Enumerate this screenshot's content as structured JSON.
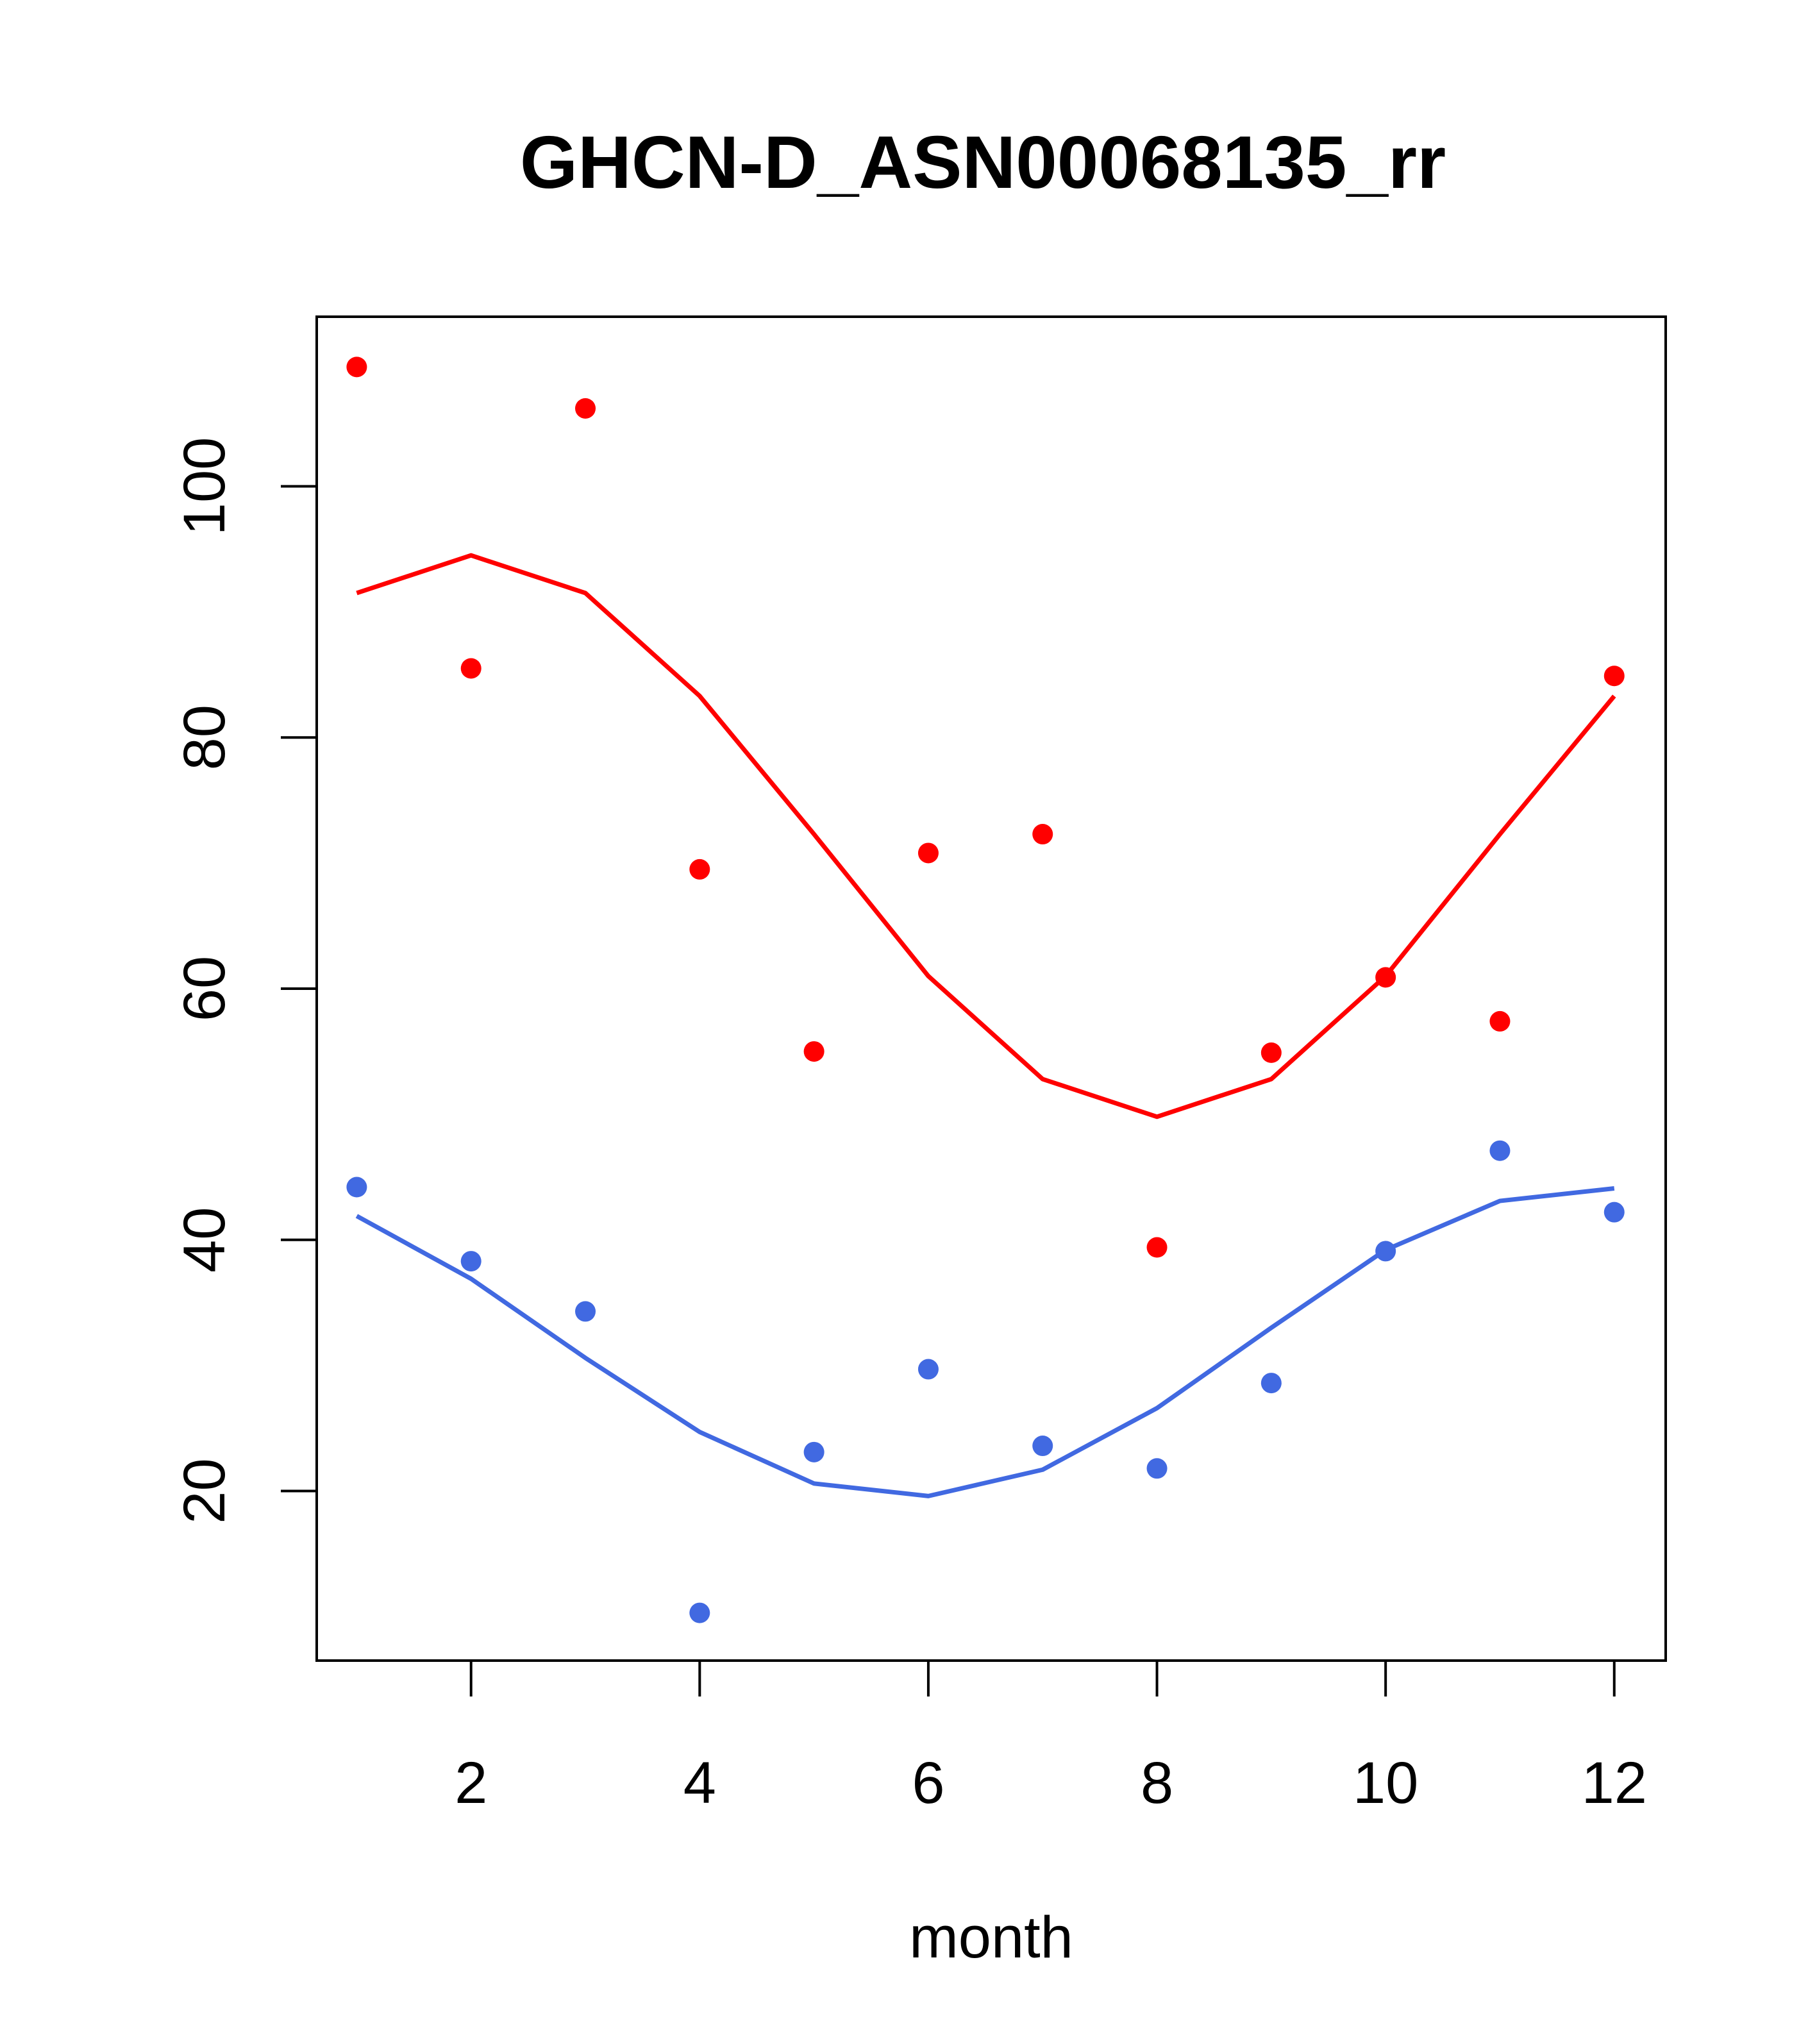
{
  "chart_data": {
    "type": "scatter",
    "title": "GHCN-D_ASN00068135_rr",
    "xlabel": "month",
    "ylabel": "",
    "xlim": [
      0.65,
      12.45
    ],
    "ylim": [
      6.5,
      113.5
    ],
    "xticks": [
      2,
      4,
      6,
      8,
      10,
      12
    ],
    "yticks": [
      20,
      40,
      60,
      80,
      100
    ],
    "grid": false,
    "series": [
      {
        "color": "#ff0000",
        "points_x": [
          1,
          2,
          3,
          4,
          5,
          6,
          7,
          8,
          9,
          10,
          11,
          12
        ],
        "points_y": [
          109.5,
          85.5,
          106.2,
          69.5,
          55.0,
          70.8,
          72.3,
          39.4,
          54.9,
          60.9,
          57.4,
          84.9
        ],
        "line_x": [
          1,
          2,
          3,
          4,
          5,
          6,
          7,
          8,
          9,
          10,
          11,
          12
        ],
        "line_y": [
          91.5,
          94.5,
          91.5,
          83.3,
          72.3,
          61.0,
          52.8,
          49.8,
          52.8,
          61.0,
          72.3,
          83.3
        ]
      },
      {
        "color": "#4169e1",
        "points_x": [
          1,
          2,
          3,
          4,
          5,
          6,
          7,
          8,
          9,
          10,
          11,
          12
        ],
        "points_y": [
          44.2,
          38.3,
          34.3,
          10.3,
          23.1,
          29.7,
          23.6,
          21.8,
          28.6,
          39.1,
          47.1,
          42.2
        ],
        "line_x": [
          1,
          2,
          3,
          4,
          5,
          6,
          7,
          8,
          9,
          10,
          11,
          12
        ],
        "line_y": [
          41.9,
          36.9,
          30.6,
          24.7,
          20.6,
          19.6,
          21.7,
          26.6,
          33.0,
          39.2,
          43.1,
          44.1
        ]
      }
    ]
  }
}
